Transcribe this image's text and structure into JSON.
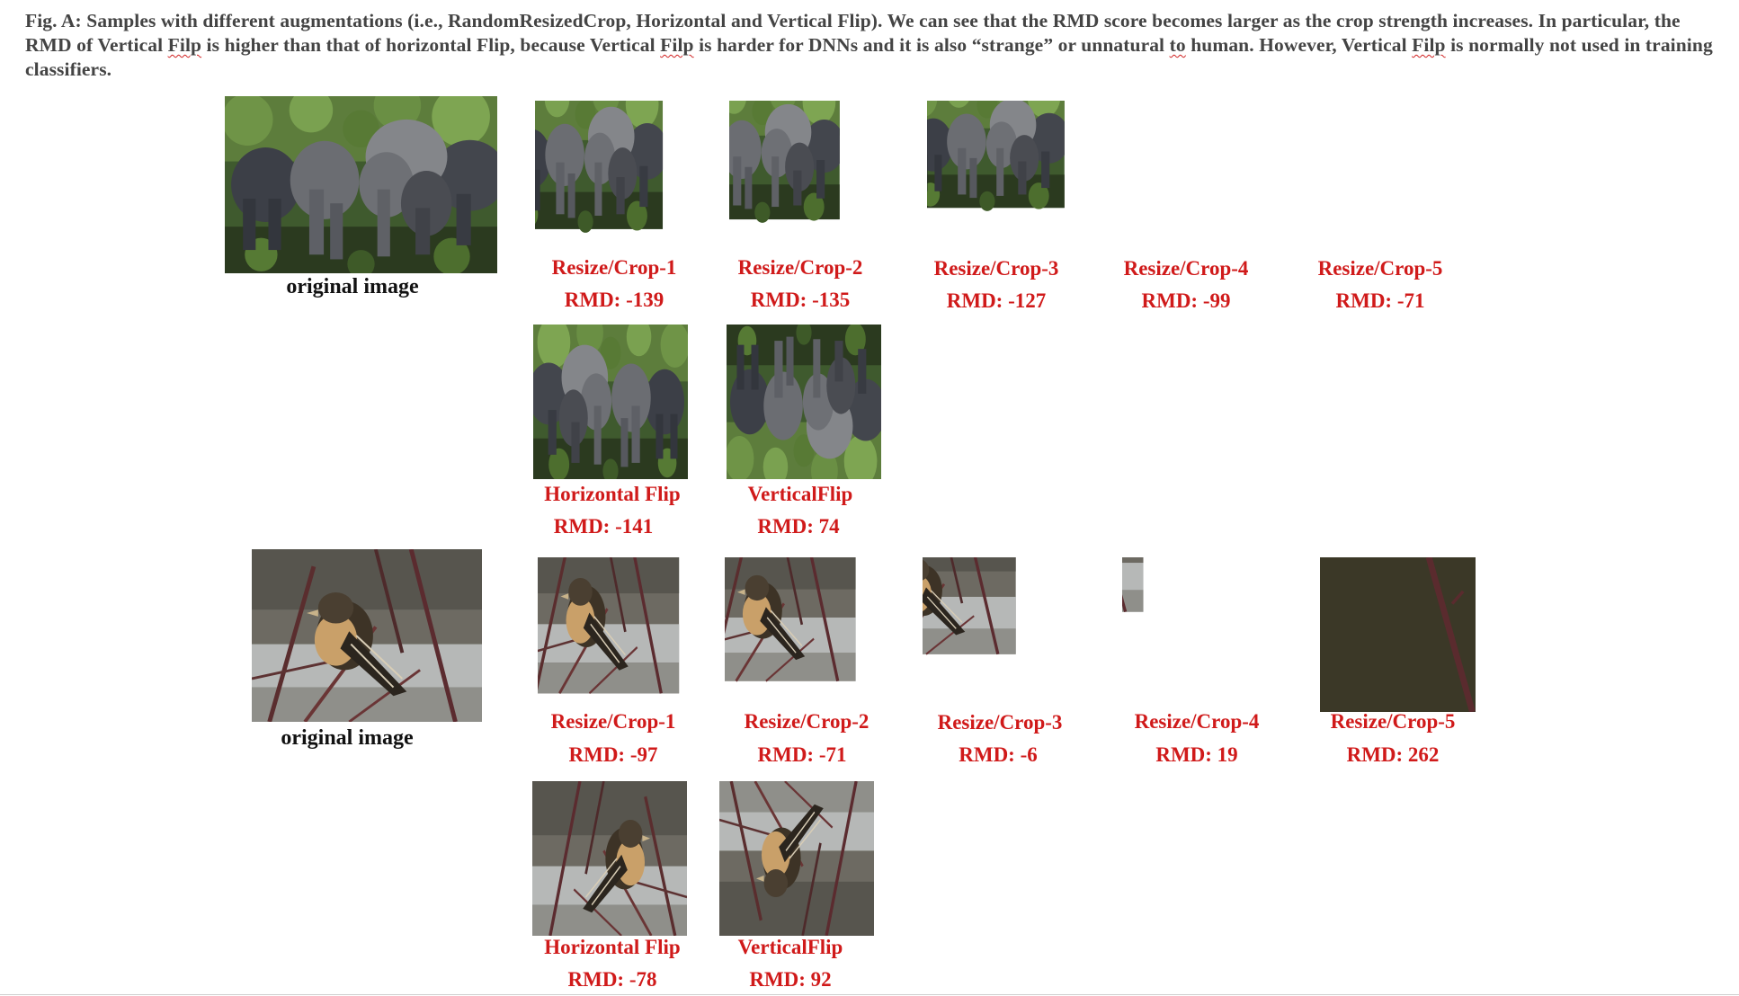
{
  "caption": {
    "p1": "Fig. A: Samples with different augmentations (i.e., RandomResizedCrop, Horizontal and Vertical Flip). We can see that the RMD score becomes larger as the crop strength increases. In particular, the RMD of Vertical ",
    "w1": "Filp",
    "p2": " is higher than that of horizontal Flip, because Vertical ",
    "w2": "Filp",
    "p3": " is harder for DNNs and it is also “strange” or unnatural ",
    "w3": "to",
    "p4": " human. However,  Vertical ",
    "w4": "Filp",
    "p5": " is normally not used in training classifiers."
  },
  "elephant": {
    "original_label": "original image",
    "samples": [
      {
        "name": "Resize/Crop-1",
        "rmd": "RMD: -139"
      },
      {
        "name": "Resize/Crop-2",
        "rmd": "RMD: -135"
      },
      {
        "name": "Resize/Crop-3",
        "rmd": "RMD: -127"
      },
      {
        "name": "Resize/Crop-4",
        "rmd": "RMD: -99"
      },
      {
        "name": "Resize/Crop-5",
        "rmd": "RMD: -71"
      },
      {
        "name": "Horizontal Flip",
        "rmd": "RMD: -141"
      },
      {
        "name": "VerticalFlip",
        "rmd": "RMD: 74"
      }
    ]
  },
  "bird": {
    "original_label": "original image",
    "samples": [
      {
        "name": "Resize/Crop-1",
        "rmd": "RMD: -97"
      },
      {
        "name": "Resize/Crop-2",
        "rmd": "RMD: -71"
      },
      {
        "name": "Resize/Crop-3",
        "rmd": "RMD: -6"
      },
      {
        "name": "Resize/Crop-4",
        "rmd": "RMD: 19"
      },
      {
        "name": "Resize/Crop-5",
        "rmd": "RMD: 262"
      },
      {
        "name": "Horizontal Flip",
        "rmd": "RMD: -78"
      },
      {
        "name": "VerticalFlip",
        "rmd": "RMD: 92"
      }
    ]
  },
  "colors": {
    "label_red": "#d01a1a",
    "caption_gray": "#444444"
  }
}
